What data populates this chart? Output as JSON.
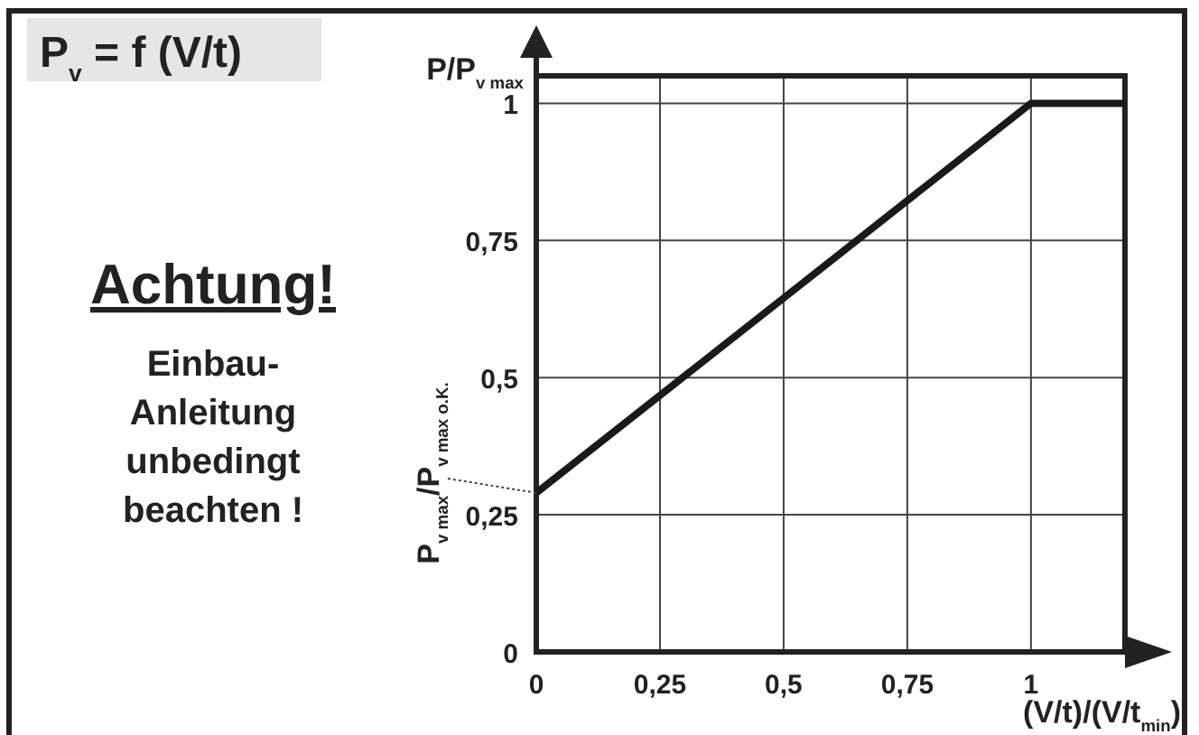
{
  "chart_data": {
    "type": "line",
    "title": "P$_{v}$ = f (V/t)",
    "ylabel": "P/P$_{v max}$",
    "xlabel": "(V/t)/(V/t$_{min}$)",
    "x": [
      0,
      1,
      1.19
    ],
    "series": [
      {
        "color": "#1a1a1a",
        "values": [
          0.29,
          1,
          1
        ]
      }
    ],
    "xlim": [
      0,
      1.19
    ],
    "ylim": [
      0,
      1.05
    ],
    "xticks": [
      {
        "value": 0,
        "label": "0"
      },
      {
        "value": 0.25,
        "label": "0,25"
      },
      {
        "value": 0.5,
        "label": "0,5"
      },
      {
        "value": 0.75,
        "label": "0,75"
      },
      {
        "value": 1,
        "label": "1"
      }
    ],
    "yticks": [
      {
        "value": 0,
        "label": "0"
      },
      {
        "value": 0.25,
        "label": "0,25"
      },
      {
        "value": 0.5,
        "label": "0,5"
      },
      {
        "value": 0.75,
        "label": "0,75"
      },
      {
        "value": 1,
        "label": "1"
      }
    ],
    "grid": true,
    "marker": "none",
    "line_style": "solid",
    "annotations": [
      "Achtung!",
      "Einbau-\nAnleitung\nunbedingt\nbeachten !",
      {
        "text": "P$_{v max}$/P$_{v max o.K.}$",
        "x": 0,
        "y": 0.29
      }
    ]
  }
}
